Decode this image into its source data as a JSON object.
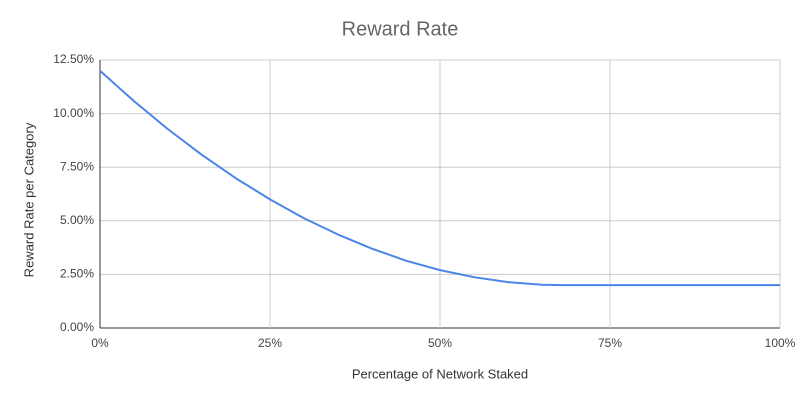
{
  "chart_data": {
    "type": "line",
    "title": "Reward Rate",
    "x_label": "Percentage of Network Staked",
    "y_label": "Reward Rate per Category",
    "x": [
      0,
      5,
      10,
      15,
      20,
      25,
      30,
      35,
      40,
      45,
      50,
      55,
      60,
      65,
      68,
      70,
      75,
      80,
      85,
      90,
      95,
      100
    ],
    "values": [
      12,
      10.58,
      9.27,
      8.07,
      6.98,
      6.0,
      5.12,
      4.36,
      3.7,
      3.14,
      2.7,
      2.37,
      2.14,
      2.02,
      2,
      2,
      2,
      2,
      2,
      2,
      2,
      2
    ],
    "color": "#4a86e8",
    "xlim": [
      0,
      100
    ],
    "xticks": [
      {
        "value": 0,
        "label": "0%"
      },
      {
        "value": 25,
        "label": "25%"
      },
      {
        "value": 50,
        "label": "50%"
      },
      {
        "value": 75,
        "label": "75%"
      },
      {
        "value": 100,
        "label": "100%"
      }
    ],
    "ylim": [
      0,
      12.5
    ],
    "yticks": [
      {
        "value": 0,
        "label": "0.00%"
      },
      {
        "value": 2.5,
        "label": "2.50%"
      },
      {
        "value": 5,
        "label": "5.00%"
      },
      {
        "value": 7.5,
        "label": "7.50%"
      },
      {
        "value": 10,
        "label": "10.00%"
      },
      {
        "value": 12.5,
        "label": "12.50%"
      }
    ],
    "grid": true
  }
}
